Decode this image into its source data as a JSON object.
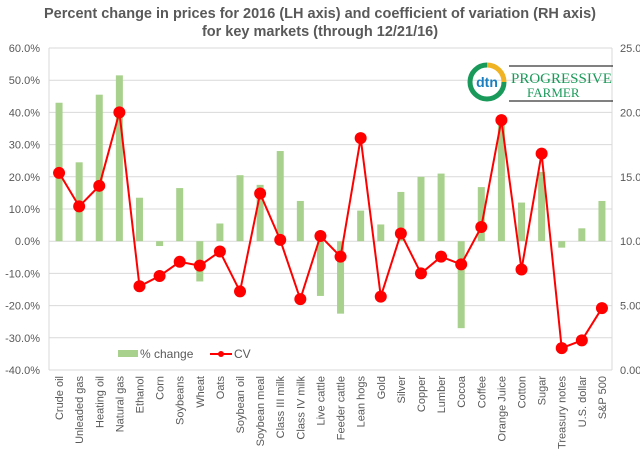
{
  "chart_data": {
    "type": "bar",
    "title_line1": "Percent change in prices for  2016 (LH axis) and coefficient of variation (RH axis)",
    "title_line2": "for key markets (through 12/21/16)",
    "categories": [
      "Crude oil",
      "Unleaded gas",
      "Heating oil",
      "Natural gas",
      "Ethanol",
      "Corn",
      "Soybeans",
      "Wheat",
      "Oats",
      "Soybean oil",
      "Soybean meal",
      "Class III milk",
      "Class IV milk",
      "Live cattle",
      "Feeder cattle",
      "Lean hogs",
      "Gold",
      "Silver",
      "Copper",
      "Lumber",
      "Cocoa",
      "Coffee",
      "Orange Juice",
      "Cotton",
      "Sugar",
      "Treasury notes",
      "U.S.  dollar",
      "S&P 500"
    ],
    "series": [
      {
        "name": "% change",
        "type": "bar",
        "axis": "left",
        "color": "#a9d18e",
        "values": [
          43.0,
          24.5,
          45.5,
          51.5,
          13.5,
          -1.5,
          16.5,
          -12.5,
          5.5,
          20.5,
          17.5,
          28.0,
          12.5,
          -17.0,
          -22.5,
          9.5,
          5.2,
          15.3,
          20.0,
          21.0,
          -27.0,
          16.8,
          36.0,
          12.0,
          21.5,
          -2.0,
          4.0,
          12.5
        ]
      },
      {
        "name": "CV",
        "type": "line",
        "axis": "right",
        "color": "#ff0000",
        "values": [
          15.3,
          12.7,
          14.3,
          20.0,
          6.5,
          7.3,
          8.4,
          8.1,
          9.2,
          6.1,
          13.7,
          10.1,
          5.5,
          10.4,
          8.8,
          18.0,
          5.7,
          10.6,
          7.5,
          8.8,
          8.2,
          11.1,
          19.4,
          7.8,
          16.8,
          1.7,
          2.3,
          4.8
        ]
      }
    ],
    "left_axis": {
      "ylim": [
        -40,
        60
      ],
      "step": 10,
      "ticks": [
        "60.0%",
        "50.0%",
        "40.0%",
        "30.0%",
        "20.0%",
        "10.0%",
        "0.0%",
        "-10.0%",
        "-20.0%",
        "-30.0%",
        "-40.0%"
      ]
    },
    "right_axis": {
      "ylim": [
        0,
        25
      ],
      "step": 5,
      "ticks": [
        "25.00",
        "20.00",
        "15.00",
        "10.00",
        "5.00",
        "0.00"
      ]
    },
    "grid": true,
    "legend": {
      "placement": "bottom-left",
      "entries": [
        "% change",
        "CV"
      ]
    },
    "xlabel": "",
    "ylabel": ""
  },
  "logo": {
    "brand_short": "dtn",
    "brand_line1": "PROGRESSIVE",
    "brand_line2": "FARMER"
  }
}
